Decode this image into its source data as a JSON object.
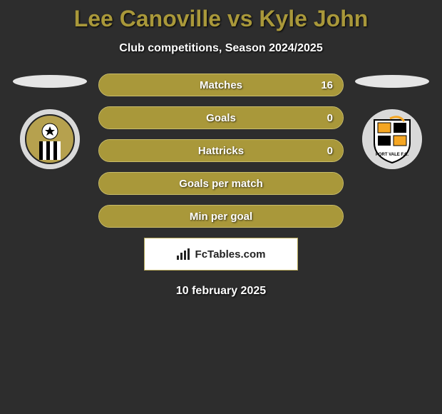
{
  "title_color": "#a9983a",
  "title": "Lee Canoville vs Kyle John",
  "subtitle": "Club competitions, Season 2024/2025",
  "left": {
    "oval_color": "#e5e5e5",
    "crest_name": "notts-county"
  },
  "right": {
    "oval_color": "#e5e5e5",
    "crest_name": "port-vale"
  },
  "bars": {
    "track_color": "#8b7d2e",
    "border_color": "#c9bd6a",
    "fill_color": "#a9983a",
    "items": [
      {
        "label": "Matches",
        "left": "",
        "right": "16",
        "fill_pct": 100
      },
      {
        "label": "Goals",
        "left": "",
        "right": "0",
        "fill_pct": 100
      },
      {
        "label": "Hattricks",
        "left": "",
        "right": "0",
        "fill_pct": 100
      },
      {
        "label": "Goals per match",
        "left": "",
        "right": "",
        "fill_pct": 100
      },
      {
        "label": "Min per goal",
        "left": "",
        "right": "",
        "fill_pct": 100
      }
    ]
  },
  "brand": "FcTables.com",
  "date": "10 february 2025"
}
